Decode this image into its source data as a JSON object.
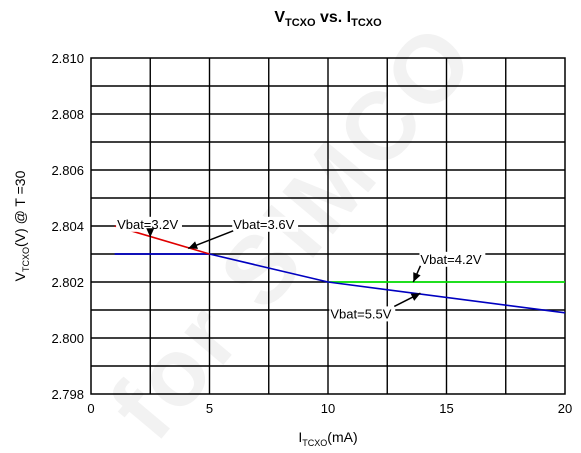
{
  "chart_data": {
    "type": "line",
    "title": {
      "main": "V",
      "main_sub": "TCXO",
      "mid": " vs. I",
      "mid_sub": "TCXO"
    },
    "xlabel": {
      "pre": "I",
      "sub": "TCXO",
      "post": "(mA)"
    },
    "ylabel": {
      "pre": "V",
      "sub": "TCXO",
      "post": "(V) @ T =30"
    },
    "xlim": [
      0,
      20
    ],
    "ylim": [
      2.798,
      2.81
    ],
    "x_ticks": [
      {
        "v": 0,
        "label": "0"
      },
      {
        "v": 5,
        "label": "5"
      },
      {
        "v": 10,
        "label": "10"
      },
      {
        "v": 15,
        "label": "15"
      },
      {
        "v": 20,
        "label": "20"
      }
    ],
    "y_ticks": [
      {
        "v": 2.798,
        "label": "2.798"
      },
      {
        "v": 2.8,
        "label": "2.800"
      },
      {
        "v": 2.802,
        "label": "2.802"
      },
      {
        "v": 2.804,
        "label": "2.804"
      },
      {
        "v": 2.806,
        "label": "2.806"
      },
      {
        "v": 2.808,
        "label": "2.808"
      },
      {
        "v": 2.81,
        "label": "2.810"
      }
    ],
    "x_grid_step": 2.5,
    "y_grid_step": 0.001,
    "grid": true,
    "legend": "none",
    "series": [
      {
        "name": "Vbat=4.2V",
        "color": "#00ff00",
        "x": [
          10,
          20
        ],
        "y": [
          2.802,
          2.802
        ]
      },
      {
        "name": "Vbat=5.5V",
        "color": "#0000c0",
        "x": [
          1,
          5,
          10,
          20
        ],
        "y": [
          2.803,
          2.803,
          2.802,
          2.8009
        ]
      },
      {
        "name": "Vbat=3.6V",
        "color": "#0000c0",
        "x": [
          1,
          5
        ],
        "y": [
          2.803,
          2.803
        ]
      },
      {
        "name": "Vbat=3.2V",
        "color": "#e00000",
        "x": [
          1,
          5
        ],
        "y": [
          2.804,
          2.803
        ]
      }
    ],
    "annotations": [
      {
        "text": "Vbat=3.2V",
        "x": 1.1,
        "y": 2.8039,
        "arrow_to": [
          2.5,
          2.8036
        ]
      },
      {
        "text": "Vbat=3.6V",
        "x": 6.0,
        "y": 2.8039,
        "arrow_to": [
          4.1,
          2.8032
        ]
      },
      {
        "text": "Vbat=4.2V",
        "x": 13.9,
        "y": 2.80265,
        "arrow_to": [
          13.6,
          2.802
        ]
      },
      {
        "text": "Vbat=5.5V",
        "x": 10.1,
        "y": 2.8007,
        "arrow_to": [
          13.9,
          2.8016
        ]
      }
    ],
    "watermark": "for SIMCO"
  }
}
